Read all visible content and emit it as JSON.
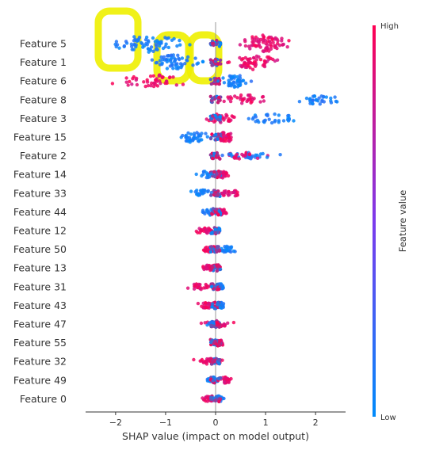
{
  "chart_data": {
    "type": "scatter",
    "subtype": "shap-summary-beeswarm",
    "title": "",
    "xlabel": "SHAP value (impact on model output)",
    "ylabel": "",
    "xlim": [
      -2.6,
      2.6
    ],
    "xticks": [
      -2,
      -1,
      0,
      1,
      2
    ],
    "grid": false,
    "colorbar": {
      "label": "Feature value",
      "high_label": "High",
      "low_label": "Low",
      "high_color": "#ff0052",
      "low_color": "#008bfb"
    },
    "features": [
      {
        "name": "Feature 5",
        "low_range": [
          -2.4,
          -0.3
        ],
        "high_range": [
          0.2,
          1.7
        ],
        "spread": 0.55
      },
      {
        "name": "Feature 1",
        "low_range": [
          -1.5,
          -0.1
        ],
        "high_range": [
          0.1,
          1.5
        ],
        "spread": 0.45
      },
      {
        "name": "Feature 6",
        "low_range": [
          0.0,
          0.8
        ],
        "high_range": [
          -2.3,
          -0.2
        ],
        "spread": 0.35
      },
      {
        "name": "Feature 8",
        "low_range": [
          1.5,
          2.6
        ],
        "high_range": [
          0.0,
          1.2
        ],
        "spread": 0.25
      },
      {
        "name": "Feature 3",
        "low_range": [
          0.3,
          1.9
        ],
        "high_range": [
          -0.3,
          0.6
        ],
        "spread": 0.25
      },
      {
        "name": "Feature 15",
        "low_range": [
          -0.9,
          0.0
        ],
        "high_range": [
          0.0,
          0.4
        ],
        "spread": 0.3
      },
      {
        "name": "Feature 2",
        "low_range": [
          -0.1,
          1.5
        ],
        "high_range": [
          -0.1,
          1.2
        ],
        "spread": 0.12
      },
      {
        "name": "Feature 14",
        "low_range": [
          -0.5,
          0.2
        ],
        "high_range": [
          0.0,
          0.3
        ],
        "spread": 0.15
      },
      {
        "name": "Feature 33",
        "low_range": [
          -0.6,
          0.0
        ],
        "high_range": [
          0.0,
          0.55
        ],
        "spread": 0.15
      },
      {
        "name": "Feature 44",
        "low_range": [
          -0.3,
          0.1
        ],
        "high_range": [
          0.0,
          0.25
        ],
        "spread": 0.12
      },
      {
        "name": "Feature 12",
        "low_range": [
          0.0,
          0.1
        ],
        "high_range": [
          -0.45,
          0.0
        ],
        "spread": 0.1
      },
      {
        "name": "Feature 50",
        "low_range": [
          0.0,
          0.5
        ],
        "high_range": [
          -0.35,
          0.1
        ],
        "spread": 0.12
      },
      {
        "name": "Feature 13",
        "low_range": [
          0.0,
          0.1
        ],
        "high_range": [
          -0.3,
          0.0
        ],
        "spread": 0.1
      },
      {
        "name": "Feature 31",
        "low_range": [
          0.0,
          0.2
        ],
        "high_range": [
          -0.6,
          0.0
        ],
        "spread": 0.1
      },
      {
        "name": "Feature 43",
        "low_range": [
          0.0,
          0.2
        ],
        "high_range": [
          -0.4,
          0.1
        ],
        "spread": 0.1
      },
      {
        "name": "Feature 47",
        "low_range": [
          -0.2,
          0.1
        ],
        "high_range": [
          -0.45,
          0.55
        ],
        "spread": 0.12
      },
      {
        "name": "Feature 55",
        "low_range": [
          -0.1,
          0.1
        ],
        "high_range": [
          0.0,
          0.2
        ],
        "spread": 0.1
      },
      {
        "name": "Feature 32",
        "low_range": [
          -0.1,
          0.1
        ],
        "high_range": [
          -0.55,
          0.3
        ],
        "spread": 0.1
      },
      {
        "name": "Feature 49",
        "low_range": [
          -0.2,
          0.1
        ],
        "high_range": [
          0.0,
          0.4
        ],
        "spread": 0.1
      },
      {
        "name": "Feature 0",
        "low_range": [
          -0.1,
          0.2
        ],
        "high_range": [
          -0.3,
          0.0
        ],
        "spread": 0.1
      }
    ],
    "annotations": {
      "highlighter_color": "#eef000",
      "highlighted_features": [
        "Feature 5",
        "Feature 1",
        "Feature 6"
      ],
      "highlighted_xrange": [
        -2.1,
        0.2
      ]
    }
  }
}
